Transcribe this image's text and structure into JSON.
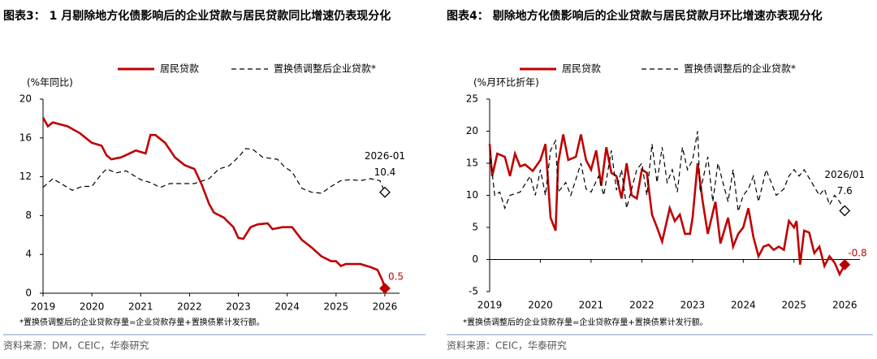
{
  "chart_data": [
    {
      "type": "line",
      "title": "图表3： 1 月剔除地方化债影响后的企业贷款与居民贷款同比增速仍表现分化",
      "y_label": "(%年同比)",
      "legend": "top",
      "xlim": [
        2019,
        2026.3
      ],
      "xticks": [
        2019,
        2020,
        2021,
        2022,
        2023,
        2024,
        2025,
        2026
      ],
      "ylim": [
        0,
        20
      ],
      "yticks": [
        0,
        4,
        8,
        12,
        16,
        20
      ],
      "annotation": "2026-01",
      "series": [
        {
          "name": "居民贷款",
          "color": "#c00000",
          "dashed": false,
          "x": [
            2019.0,
            2019.1,
            2019.2,
            2019.5,
            2019.75,
            2020.0,
            2020.2,
            2020.3,
            2020.4,
            2020.6,
            2020.9,
            2021.1,
            2021.2,
            2021.3,
            2021.5,
            2021.7,
            2021.9,
            2022.1,
            2022.25,
            2022.4,
            2022.5,
            2022.7,
            2022.9,
            2023.0,
            2023.1,
            2023.25,
            2023.4,
            2023.6,
            2023.7,
            2023.9,
            2024.1,
            2024.3,
            2024.5,
            2024.7,
            2024.9,
            2025.0,
            2025.1,
            2025.2,
            2025.5,
            2025.7,
            2025.85,
            2025.95,
            2026.0
          ],
          "values": [
            18.1,
            17.2,
            17.6,
            17.2,
            16.5,
            15.5,
            15.2,
            14.2,
            13.8,
            14.0,
            14.7,
            14.4,
            16.3,
            16.3,
            15.5,
            14.0,
            13.2,
            12.8,
            11.2,
            9.2,
            8.3,
            7.8,
            6.8,
            5.7,
            5.6,
            6.8,
            7.1,
            7.2,
            6.6,
            6.8,
            6.8,
            5.5,
            4.7,
            3.8,
            3.3,
            3.3,
            2.8,
            3.0,
            3.0,
            2.7,
            2.4,
            1.3,
            0.5
          ]
        },
        {
          "name": "置换债调整后企业贷款*",
          "color": "#000000",
          "dashed": true,
          "x": [
            2019.0,
            2019.2,
            2019.4,
            2019.6,
            2019.8,
            2020.0,
            2020.2,
            2020.3,
            2020.5,
            2020.7,
            2021.0,
            2021.2,
            2021.4,
            2021.6,
            2021.9,
            2022.1,
            2022.4,
            2022.6,
            2022.8,
            2023.0,
            2023.15,
            2023.3,
            2023.5,
            2023.8,
            2023.95,
            2024.1,
            2024.3,
            2024.5,
            2024.7,
            2024.9,
            2025.1,
            2025.3,
            2025.5,
            2025.7,
            2025.9,
            2026.0
          ],
          "values": [
            10.9,
            11.8,
            11.2,
            10.6,
            11.0,
            11.0,
            12.3,
            12.8,
            12.4,
            12.6,
            11.7,
            11.4,
            10.9,
            11.3,
            11.3,
            11.3,
            11.8,
            12.8,
            13.1,
            14.0,
            14.9,
            14.8,
            14.0,
            13.8,
            13.0,
            12.5,
            10.8,
            10.4,
            10.3,
            11.0,
            11.6,
            11.7,
            11.6,
            11.8,
            11.6,
            10.4
          ]
        }
      ],
      "footnote": "*置换债调整后的企业贷款存量=企业贷款存量+置换债累计发行额。",
      "source": "资料来源：DM，CEIC，华泰研究"
    },
    {
      "type": "line",
      "title": "图表4： 剔除地方化债影响后的企业贷款与居民贷款月环比增速亦表现分化",
      "y_label": "(%月环比折年)",
      "legend": "top",
      "xlim": [
        2019,
        2026.3
      ],
      "xticks": [
        2019,
        2020,
        2021,
        2022,
        2023,
        2024,
        2025,
        2026
      ],
      "ylim": [
        -5,
        25
      ],
      "yticks": [
        -5,
        0,
        5,
        10,
        15,
        20,
        25
      ],
      "annotation": "2026/01",
      "series": [
        {
          "name": "居民贷款",
          "color": "#c00000",
          "dashed": false,
          "x": [
            2019.0,
            2019.05,
            2019.15,
            2019.3,
            2019.4,
            2019.5,
            2019.6,
            2019.7,
            2019.85,
            2020.0,
            2020.1,
            2020.2,
            2020.3,
            2020.35,
            2020.45,
            2020.55,
            2020.7,
            2020.8,
            2020.9,
            2021.0,
            2021.1,
            2021.2,
            2021.3,
            2021.4,
            2021.5,
            2021.6,
            2021.7,
            2021.8,
            2021.9,
            2022.0,
            2022.1,
            2022.2,
            2022.3,
            2022.4,
            2022.55,
            2022.65,
            2022.75,
            2022.85,
            2022.95,
            2023.0,
            2023.1,
            2023.2,
            2023.3,
            2023.45,
            2023.55,
            2023.7,
            2023.8,
            2023.9,
            2024.0,
            2024.1,
            2024.2,
            2024.3,
            2024.4,
            2024.5,
            2024.6,
            2024.7,
            2024.8,
            2024.9,
            2025.0,
            2025.05,
            2025.12,
            2025.2,
            2025.3,
            2025.4,
            2025.5,
            2025.6,
            2025.7,
            2025.8,
            2025.9,
            2026.0
          ],
          "values": [
            18,
            13,
            16.5,
            16,
            13,
            16.5,
            14.5,
            14.8,
            13.8,
            15.5,
            18,
            6.5,
            4.5,
            15,
            19.5,
            15.5,
            16,
            19.5,
            15.5,
            14,
            17,
            11.5,
            17.5,
            13.5,
            13,
            9.5,
            15,
            10,
            9.5,
            14,
            13.5,
            7,
            5,
            2.8,
            8,
            6,
            7,
            4,
            4,
            6.5,
            15,
            9,
            4,
            9,
            2.5,
            6.5,
            2,
            4,
            5,
            8,
            3.5,
            0.5,
            2,
            2.3,
            1.5,
            2,
            1.5,
            6,
            5,
            6,
            -0.8,
            4.5,
            4.2,
            1,
            2,
            -1,
            0.5,
            -0.5,
            -2.3,
            -0.8
          ]
        },
        {
          "name": "置换债调整后的企业贷款*",
          "color": "#000000",
          "dashed": true,
          "x": [
            2019.0,
            2019.1,
            2019.2,
            2019.3,
            2019.4,
            2019.6,
            2019.8,
            2019.9,
            2020.0,
            2020.1,
            2020.2,
            2020.3,
            2020.35,
            2020.5,
            2020.6,
            2020.8,
            2020.9,
            2021.0,
            2021.15,
            2021.25,
            2021.4,
            2021.5,
            2021.6,
            2021.7,
            2021.8,
            2021.9,
            2022.0,
            2022.1,
            2022.2,
            2022.3,
            2022.4,
            2022.5,
            2022.6,
            2022.7,
            2022.8,
            2022.9,
            2023.0,
            2023.1,
            2023.15,
            2023.3,
            2023.4,
            2023.5,
            2023.6,
            2023.7,
            2023.8,
            2023.9,
            2024.0,
            2024.1,
            2024.2,
            2024.3,
            2024.45,
            2024.55,
            2024.65,
            2024.8,
            2024.9,
            2025.0,
            2025.1,
            2025.2,
            2025.35,
            2025.5,
            2025.6,
            2025.7,
            2025.8,
            2025.9,
            2026.0
          ],
          "values": [
            17,
            10,
            10.5,
            8,
            10,
            10.5,
            13,
            10,
            14,
            10,
            17,
            18.5,
            10.5,
            12,
            10,
            15,
            11,
            10.5,
            13,
            10,
            17,
            10.8,
            14,
            8,
            11,
            14,
            15,
            10,
            18,
            12,
            17.5,
            12,
            14,
            10.5,
            17.5,
            14,
            15.5,
            20,
            10.5,
            16,
            9,
            15,
            12,
            9,
            14,
            7.5,
            10,
            11,
            13,
            9,
            14,
            12,
            10,
            11,
            13,
            14,
            13,
            14,
            12,
            10,
            11,
            8.5,
            10,
            9,
            7.6
          ]
        }
      ],
      "footnote": "*置换债调整后的企业贷款存量=企业贷款存量+置换债累计发行额。",
      "source": "资料来源：CEIC，华泰研究"
    }
  ]
}
